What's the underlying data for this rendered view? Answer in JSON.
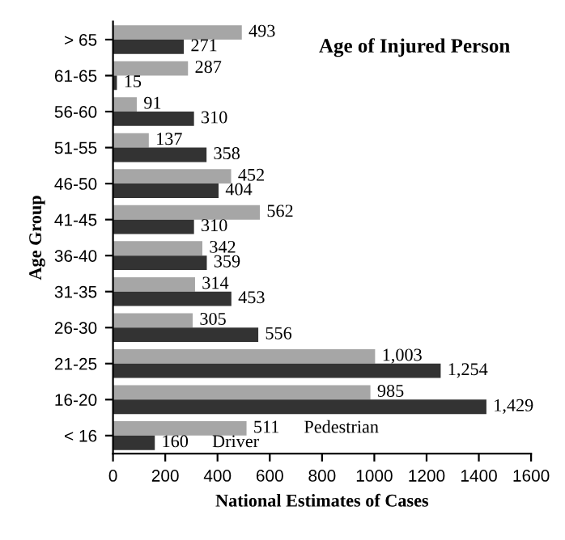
{
  "chart_data": {
    "type": "bar",
    "orientation": "horizontal",
    "title": "Age of Injured Person",
    "xlabel": "National Estimates of Cases",
    "ylabel": "Age Group",
    "categories": [
      "> 65",
      "61-65",
      "56-60",
      "51-55",
      "46-50",
      "41-45",
      "36-40",
      "31-35",
      "26-30",
      "21-25",
      "16-20",
      "< 16"
    ],
    "series": [
      {
        "name": "Pedestrian",
        "color": "#a6a6a6",
        "values": [
          493,
          287,
          91,
          137,
          452,
          562,
          342,
          314,
          305,
          1003,
          985,
          511
        ],
        "value_labels": [
          "493",
          "287",
          "91",
          "137",
          "452",
          "562",
          "342",
          "314",
          "305",
          "1,003",
          "985",
          "511"
        ]
      },
      {
        "name": "Driver",
        "color": "#333333",
        "values": [
          271,
          15,
          310,
          358,
          404,
          310,
          359,
          453,
          556,
          1254,
          1429,
          160
        ],
        "value_labels": [
          "271",
          "15",
          "310",
          "358",
          "404",
          "310",
          "359",
          "453",
          "556",
          "1,254",
          "1,429",
          "160"
        ]
      }
    ],
    "xlim": [
      0,
      1600
    ],
    "xticks": [
      0,
      200,
      400,
      600,
      800,
      1000,
      1200,
      1400,
      1600
    ],
    "grid": false,
    "legend": false
  }
}
